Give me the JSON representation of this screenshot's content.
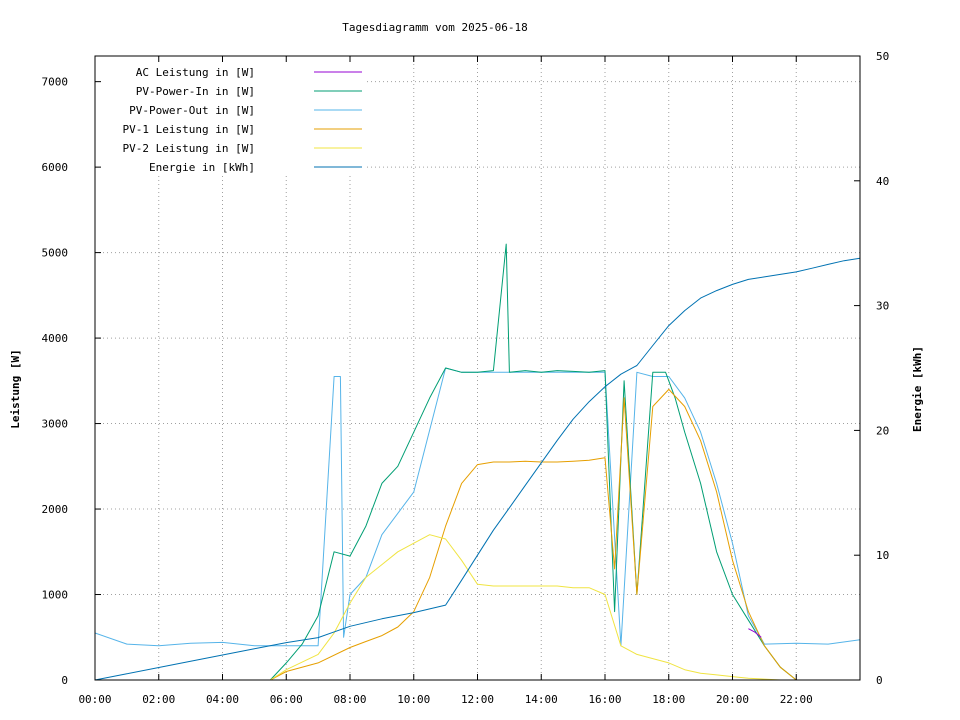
{
  "chart_data": {
    "type": "line",
    "title": "Tagesdiagramm vom 2025-06-18",
    "ylabel": "Leistung [W]",
    "y2label": "Energie [kWh]",
    "xlabel": "",
    "xlim": [
      0,
      24
    ],
    "ylim": [
      0,
      7300
    ],
    "y2lim": [
      0,
      50
    ],
    "x_tick_labels": [
      "00:00",
      "02:00",
      "04:00",
      "06:00",
      "08:00",
      "10:00",
      "12:00",
      "14:00",
      "16:00",
      "18:00",
      "20:00",
      "22:00"
    ],
    "y_tick_labels": [
      "0",
      "1000",
      "2000",
      "3000",
      "4000",
      "5000",
      "6000",
      "7000"
    ],
    "y2_tick_labels": [
      "0",
      "10",
      "20",
      "30",
      "40",
      "50"
    ],
    "grid": true,
    "legend_position": "top-left",
    "x_units": "hours since 00:00",
    "series": [
      {
        "name": "AC Leistung in [W]",
        "color": "#9400d3",
        "axis": "left",
        "x": [
          20.5,
          20.7,
          20.9
        ],
        "y": [
          600,
          560,
          500
        ]
      },
      {
        "name": "PV-Power-In in [W]",
        "color": "#009e73",
        "axis": "left",
        "x": [
          5.5,
          6.0,
          6.5,
          7.0,
          7.5,
          8.0,
          8.5,
          9.0,
          9.5,
          10.0,
          10.5,
          11.0,
          11.5,
          12.0,
          12.5,
          12.9,
          13.0,
          13.5,
          14.0,
          14.5,
          15.0,
          15.5,
          16.0,
          16.3,
          16.6,
          17.0,
          17.5,
          17.9,
          18.2,
          18.5,
          19.0,
          19.5,
          20.0,
          20.5,
          21.0,
          21.5,
          22.0
        ],
        "y": [
          0,
          200,
          420,
          750,
          1500,
          1450,
          1800,
          2300,
          2500,
          2900,
          3300,
          3650,
          3600,
          3600,
          3620,
          5100,
          3600,
          3620,
          3600,
          3620,
          3610,
          3600,
          3620,
          800,
          3500,
          1000,
          3600,
          3600,
          3300,
          2900,
          2300,
          1500,
          1000,
          700,
          400,
          150,
          0
        ]
      },
      {
        "name": "PV-Power-Out in [W]",
        "color": "#56b4e9",
        "axis": "left",
        "x": [
          0.0,
          1.0,
          2.0,
          3.0,
          4.0,
          5.0,
          6.0,
          7.0,
          7.5,
          7.7,
          7.8,
          8.0,
          8.5,
          9.0,
          10.0,
          11.0,
          11.5,
          12.0,
          13.0,
          14.0,
          15.0,
          16.0,
          16.5,
          17.0,
          17.5,
          18.0,
          18.5,
          19.0,
          19.5,
          20.0,
          20.5,
          21.0,
          22.0,
          23.0,
          24.0
        ],
        "y": [
          550,
          420,
          400,
          430,
          440,
          400,
          400,
          400,
          3550,
          3550,
          500,
          1000,
          1200,
          1700,
          2200,
          3650,
          3600,
          3600,
          3600,
          3600,
          3600,
          3600,
          400,
          3600,
          3550,
          3550,
          3300,
          2900,
          2300,
          1600,
          750,
          420,
          430,
          420,
          470
        ]
      },
      {
        "name": "PV-1 Leistung in [W]",
        "color": "#e69f00",
        "axis": "left",
        "x": [
          5.5,
          6.0,
          7.0,
          8.0,
          8.5,
          9.0,
          9.5,
          10.0,
          10.5,
          11.0,
          11.5,
          12.0,
          12.5,
          13.0,
          13.5,
          14.0,
          14.5,
          15.0,
          15.5,
          16.0,
          16.3,
          16.6,
          17.0,
          17.5,
          18.0,
          18.5,
          19.0,
          19.5,
          20.0,
          20.5,
          21.0,
          21.5,
          22.0
        ],
        "y": [
          0,
          100,
          200,
          380,
          450,
          520,
          620,
          800,
          1200,
          1800,
          2300,
          2520,
          2550,
          2550,
          2560,
          2550,
          2550,
          2560,
          2570,
          2600,
          1300,
          3300,
          1000,
          3200,
          3400,
          3200,
          2800,
          2200,
          1400,
          800,
          400,
          150,
          0
        ]
      },
      {
        "name": "PV-2 Leistung in [W]",
        "color": "#f0e442",
        "axis": "left",
        "x": [
          5.5,
          6.0,
          7.0,
          7.5,
          8.0,
          8.5,
          9.0,
          9.5,
          10.0,
          10.5,
          11.0,
          11.5,
          12.0,
          12.5,
          13.0,
          13.5,
          14.0,
          14.5,
          15.0,
          15.5,
          16.0,
          16.5,
          17.0,
          17.5,
          18.0,
          18.5,
          19.0,
          19.5,
          20.0,
          20.5,
          21.0,
          21.5
        ],
        "y": [
          0,
          120,
          300,
          550,
          900,
          1200,
          1350,
          1500,
          1600,
          1700,
          1650,
          1400,
          1120,
          1100,
          1100,
          1100,
          1100,
          1100,
          1080,
          1080,
          1000,
          400,
          300,
          250,
          200,
          120,
          80,
          60,
          40,
          20,
          10,
          0
        ]
      },
      {
        "name": "Energie in [kWh]",
        "color": "#0072b2",
        "axis": "right",
        "x": [
          0.0,
          1.0,
          2.0,
          3.0,
          4.0,
          5.0,
          6.0,
          7.0,
          8.0,
          9.0,
          10.0,
          10.5,
          11.0,
          11.5,
          12.0,
          12.5,
          13.0,
          13.5,
          14.0,
          14.5,
          15.0,
          15.5,
          16.0,
          16.5,
          17.0,
          17.5,
          18.0,
          18.5,
          19.0,
          19.5,
          20.0,
          20.5,
          21.0,
          21.5,
          22.0,
          22.5,
          23.0,
          23.5,
          24.0
        ],
        "y": [
          0.0,
          0.5,
          1.0,
          1.5,
          2.0,
          2.5,
          3.0,
          3.4,
          4.3,
          4.9,
          5.4,
          5.7,
          6.0,
          8.0,
          10.0,
          12.0,
          13.8,
          15.6,
          17.4,
          19.2,
          20.9,
          22.3,
          23.5,
          24.5,
          25.2,
          26.8,
          28.4,
          29.6,
          30.6,
          31.2,
          31.7,
          32.1,
          32.3,
          32.5,
          32.7,
          33.0,
          33.3,
          33.6,
          33.8
        ]
      }
    ]
  }
}
